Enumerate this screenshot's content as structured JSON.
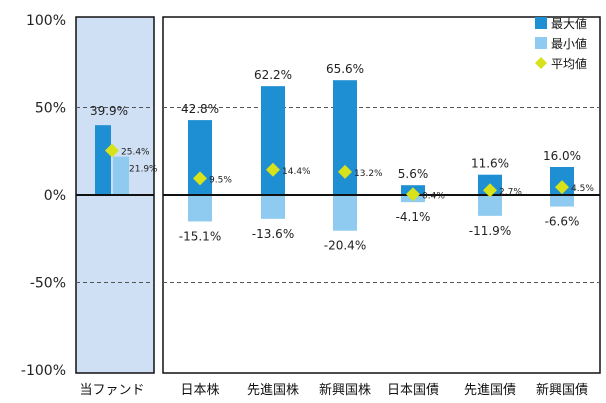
{
  "chart_data": {
    "type": "bar",
    "title": "",
    "xlabel": "",
    "ylabel": "",
    "ylim": [
      -100,
      100
    ],
    "yticks": [
      "100%",
      "50%",
      "0%",
      "-50%",
      "-100%"
    ],
    "categories": [
      "当ファンド",
      "日本株",
      "先進国株",
      "新興国株",
      "日本国債",
      "先進国債",
      "新興国債"
    ],
    "series": [
      {
        "name": "最大値",
        "color": "#1f8fd3",
        "values": [
          39.9,
          42.8,
          62.2,
          65.6,
          5.6,
          11.6,
          16.0
        ]
      },
      {
        "name": "最小値",
        "color": "#8fcaf0",
        "values": [
          21.9,
          -15.1,
          -13.6,
          -20.4,
          -4.1,
          -11.9,
          -6.6
        ]
      },
      {
        "name": "平均値",
        "color": "#d8e21a",
        "values": [
          25.4,
          9.5,
          14.4,
          13.2,
          0.4,
          2.7,
          4.5
        ]
      }
    ],
    "max_labels": [
      "39.9%",
      "42.8%",
      "62.2%",
      "65.6%",
      "5.6%",
      "11.6%",
      "16.0%"
    ],
    "min_labels": [
      "21.9%",
      "-15.1%",
      "-13.6%",
      "-20.4%",
      "-4.1%",
      "-11.9%",
      "-6.6%"
    ],
    "avg_labels": [
      "25.4%",
      "9.5%",
      "14.4%",
      "13.2%",
      "0.4%",
      "2.7%",
      "4.5%"
    ],
    "highlight_category": "当ファンド",
    "highlight_color": "#cfe0f5",
    "grid": "dashed at ±50%",
    "legend_position": "top-right"
  }
}
